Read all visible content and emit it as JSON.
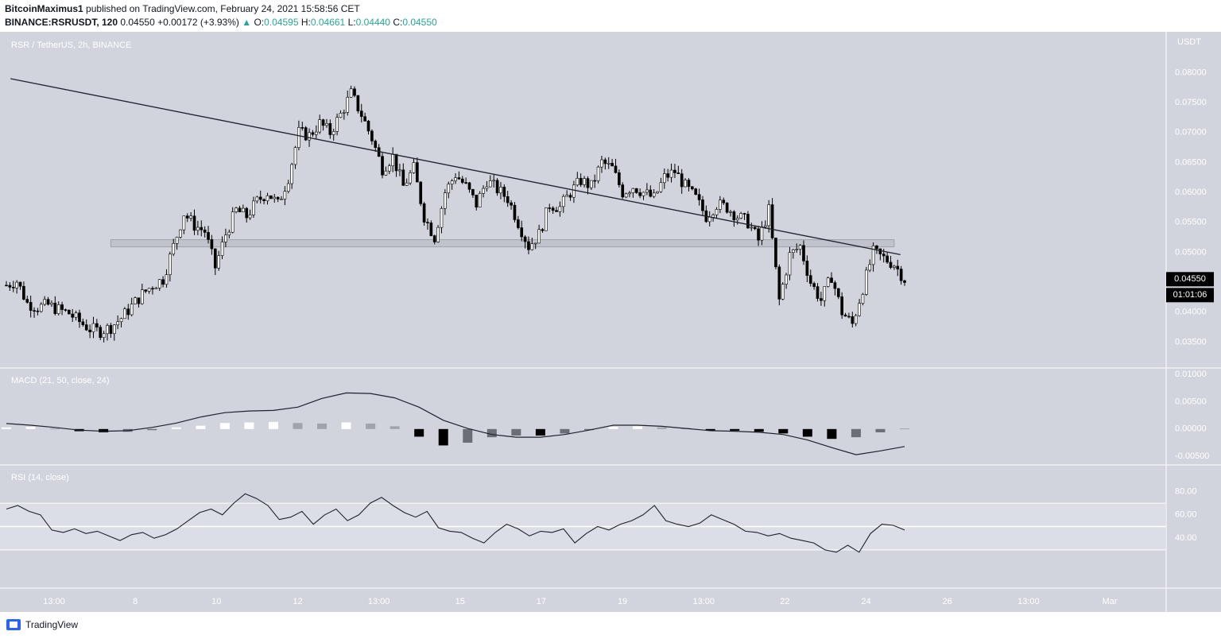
{
  "header": {
    "publisher": "BitcoinMaximus1",
    "published_text": "published on TradingView.com, February 24, 2021 15:58:56 CET",
    "symbol_full": "BINANCE:RSRUSDT, 120",
    "last": "0.04550",
    "change": "+0.00172 (+3.93%)",
    "o_label": "O:",
    "o_value": "0.04595",
    "h_label": "H:",
    "h_value": "0.04661",
    "l_label": "L:",
    "l_value": "0.04440",
    "c_label": "C:",
    "c_value": "0.04550"
  },
  "footer": {
    "brand": "TradingView"
  },
  "colors": {
    "pane_bg": "#d1d4dc",
    "up": "#ffffff",
    "down": "#000000",
    "text": "#131722",
    "axis_text": "#ffffff",
    "price_tag_bg": "#000000",
    "change_green": "#26a69a"
  },
  "chart_data": [
    {
      "type": "candlestick",
      "title": "RSR / TetherUS, 2h, BINANCE",
      "unit": "USDT",
      "y_ticks": [
        "0.08000",
        "0.07500",
        "0.07000",
        "0.06500",
        "0.06000",
        "0.05500",
        "0.05000",
        "0.04000",
        "0.03500"
      ],
      "ylim": [
        0.032,
        0.0855
      ],
      "x_ticks": [
        "13:00",
        "8",
        "10",
        "12",
        "13:00",
        "15",
        "17",
        "19",
        "13:00",
        "22",
        "24",
        "26",
        "13:00",
        "Mar"
      ],
      "last_price_label": "0.04550",
      "countdown_label": "01:01:06",
      "last_price": 0.0455,
      "close_path": [
        0.0445,
        0.0452,
        0.0415,
        0.0408,
        0.0412,
        0.0404,
        0.0398,
        0.0384,
        0.0372,
        0.0368,
        0.0375,
        0.039,
        0.041,
        0.043,
        0.0445,
        0.0455,
        0.051,
        0.0565,
        0.0545,
        0.0535,
        0.0475,
        0.053,
        0.057,
        0.056,
        0.0585,
        0.06,
        0.058,
        0.0625,
        0.07,
        0.0695,
        0.0715,
        0.07,
        0.073,
        0.0765,
        0.073,
        0.069,
        0.064,
        0.066,
        0.061,
        0.064,
        0.056,
        0.0525,
        0.06,
        0.063,
        0.061,
        0.058,
        0.062,
        0.0605,
        0.059,
        0.055,
        0.051,
        0.053,
        0.058,
        0.0575,
        0.06,
        0.062,
        0.061,
        0.065,
        0.064,
        0.06,
        0.061,
        0.06,
        0.059,
        0.0625,
        0.0635,
        0.061,
        0.059,
        0.056,
        0.058,
        0.0575,
        0.056,
        0.055,
        0.052,
        0.057,
        0.042,
        0.0495,
        0.051,
        0.045,
        0.042,
        0.046,
        0.04,
        0.038,
        0.044,
        0.05,
        0.049,
        0.048,
        0.0455
      ],
      "trendline": {
        "from": [
          0.4,
          0.079
        ],
        "to": [
          85.6,
          0.0496
        ]
      },
      "support_zone": [
        0.0509,
        0.0521
      ],
      "support_zone_index_range": [
        10.0,
        85.0
      ]
    },
    {
      "type": "line",
      "title": "MACD (21, 50, close, 24)",
      "y_ticks": [
        "0.01000",
        "0.00500",
        "0.00000",
        "-0.00500"
      ],
      "ylim": [
        -0.0057,
        0.0103
      ],
      "macd": [
        0.001,
        0.0007,
        0.0003,
        -0.0002,
        -0.0004,
        -0.0003,
        0.0003,
        0.0011,
        0.0022,
        0.003,
        0.0033,
        0.0034,
        0.004,
        0.0056,
        0.0066,
        0.0065,
        0.0057,
        0.004,
        0.0016,
        0.0001,
        -0.001,
        -0.0015,
        -0.0015,
        -0.001,
        -0.0002,
        0.0007,
        0.0007,
        0.0005,
        0.0001,
        -0.0003,
        -0.0004,
        -0.0006,
        -0.001,
        -0.002,
        -0.0034,
        -0.0047,
        -0.004,
        -0.0032
      ],
      "histogram": [
        0.0003,
        0.0004,
        0.0001,
        -0.0004,
        -0.0006,
        -0.0005,
        -0.0002,
        0.0003,
        0.0006,
        0.0011,
        0.0012,
        0.0013,
        0.0011,
        0.001,
        0.0012,
        0.001,
        0.0005,
        -0.0014,
        -0.003,
        -0.0025,
        -0.0015,
        -0.0012,
        -0.0012,
        -0.0008,
        -0.0002,
        0.0004,
        0.0005,
        0.0003,
        0.0002,
        -0.0003,
        -0.0003,
        -0.0005,
        -0.0008,
        -0.0014,
        -0.0018,
        -0.0015,
        -0.0006,
        0.0001
      ]
    },
    {
      "type": "line",
      "title": "RSI (14, close)",
      "y_ticks": [
        "80.00",
        "60.00",
        "40.00"
      ],
      "ylim": [
        0,
        100
      ],
      "band": [
        30,
        70
      ],
      "midline": 50,
      "values": [
        65,
        68,
        63,
        60,
        47,
        45,
        48,
        44,
        46,
        42,
        38,
        43,
        45,
        40,
        43,
        48,
        55,
        62,
        65,
        60,
        70,
        78,
        74,
        68,
        56,
        58,
        63,
        52,
        60,
        65,
        55,
        60,
        70,
        75,
        68,
        62,
        58,
        63,
        49,
        46,
        45,
        40,
        36,
        45,
        52,
        48,
        42,
        46,
        45,
        48,
        36,
        44,
        50,
        47,
        52,
        55,
        60,
        68,
        55,
        52,
        50,
        53,
        60,
        56,
        52,
        46,
        45,
        42,
        44,
        40,
        38,
        36,
        30,
        28,
        34,
        28,
        44,
        52,
        51,
        47
      ]
    }
  ]
}
